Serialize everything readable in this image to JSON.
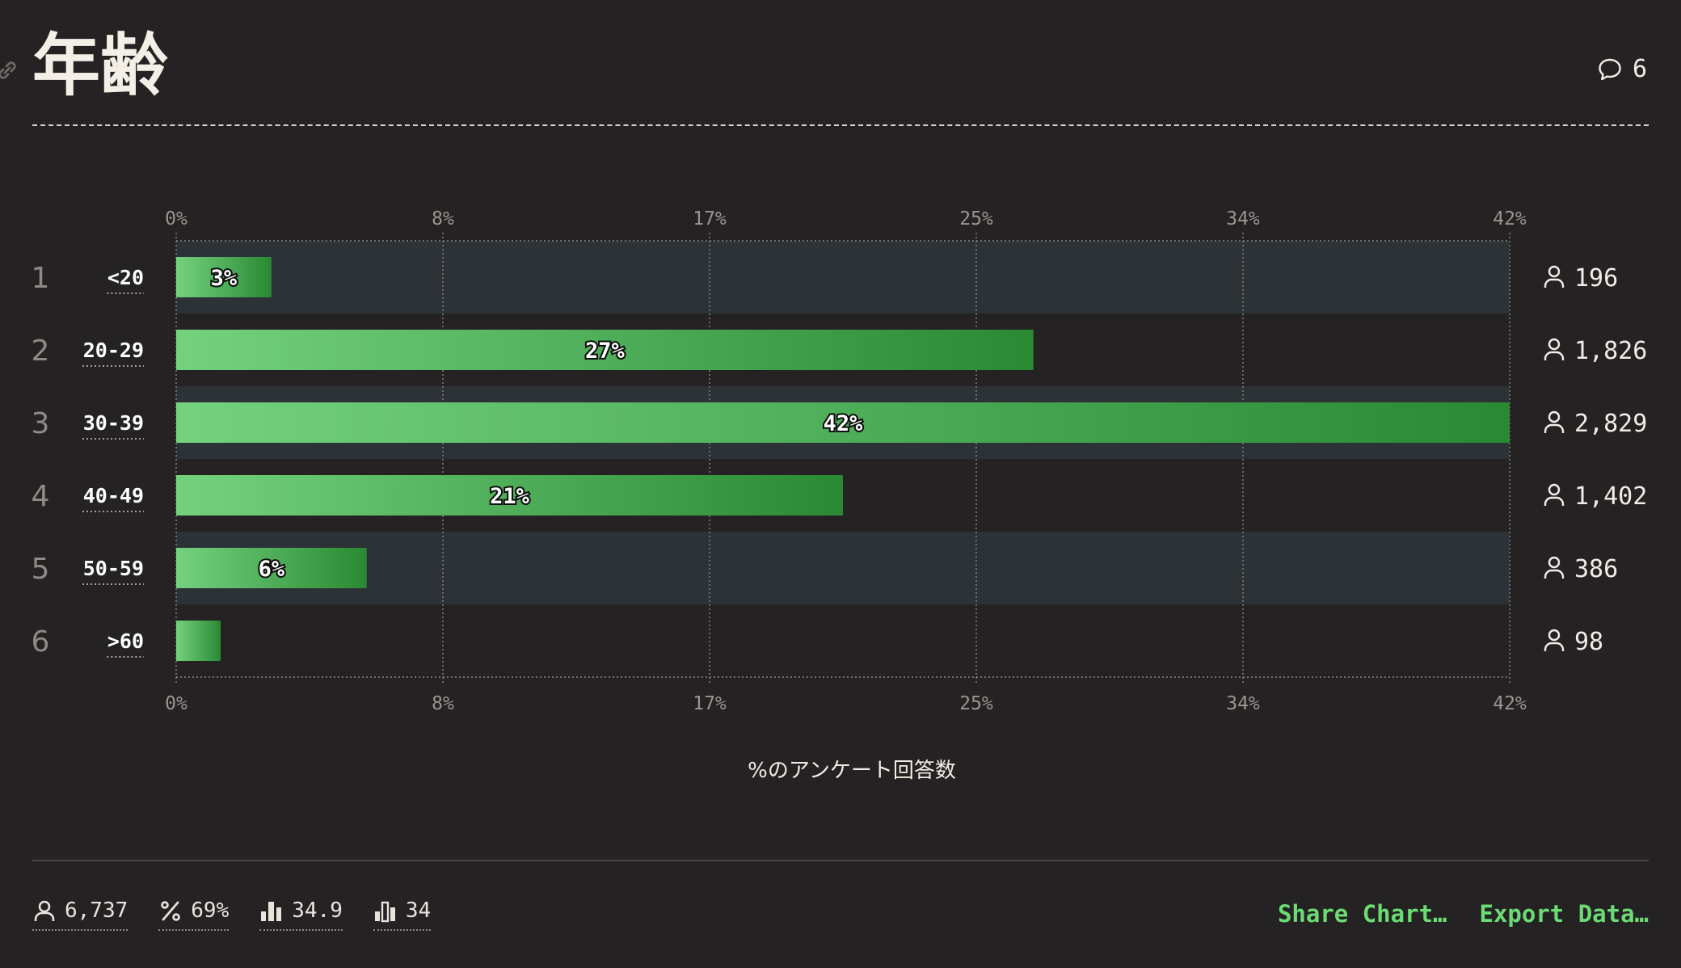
{
  "header": {
    "title": "年齢",
    "comment_count": "6"
  },
  "chart_data": {
    "type": "bar",
    "orientation": "horizontal",
    "ranks": [
      "1",
      "2",
      "3",
      "4",
      "5",
      "6"
    ],
    "categories": [
      "<20",
      "20-29",
      "30-39",
      "40-49",
      "50-59",
      ">60"
    ],
    "values": [
      3,
      27,
      42,
      21,
      6,
      1.4
    ],
    "value_labels": [
      "3%",
      "27%",
      "42%",
      "21%",
      "6%",
      ""
    ],
    "counts": [
      "196",
      "1,826",
      "2,829",
      "1,402",
      "386",
      "98"
    ],
    "xticks": [
      "0%",
      "8%",
      "17%",
      "25%",
      "34%",
      "42%"
    ],
    "xtick_values": [
      0,
      8.4,
      16.8,
      25.2,
      33.6,
      42
    ],
    "xlim": [
      0,
      42
    ],
    "xlabel": "%のアンケート回答数",
    "grid": true,
    "bar_gradient": [
      "#74d27e",
      "#2a8a34"
    ],
    "stripe_color": "#2c3236"
  },
  "footer": {
    "stats": [
      {
        "icon": "person-icon",
        "value": "6,737"
      },
      {
        "icon": "percent-icon",
        "value": "69%"
      },
      {
        "icon": "bar-chart-icon",
        "value": "34.9"
      },
      {
        "icon": "bar-chart-median-icon",
        "value": "34"
      }
    ],
    "share_label": "Share Chart…",
    "export_label": "Export Data…"
  }
}
